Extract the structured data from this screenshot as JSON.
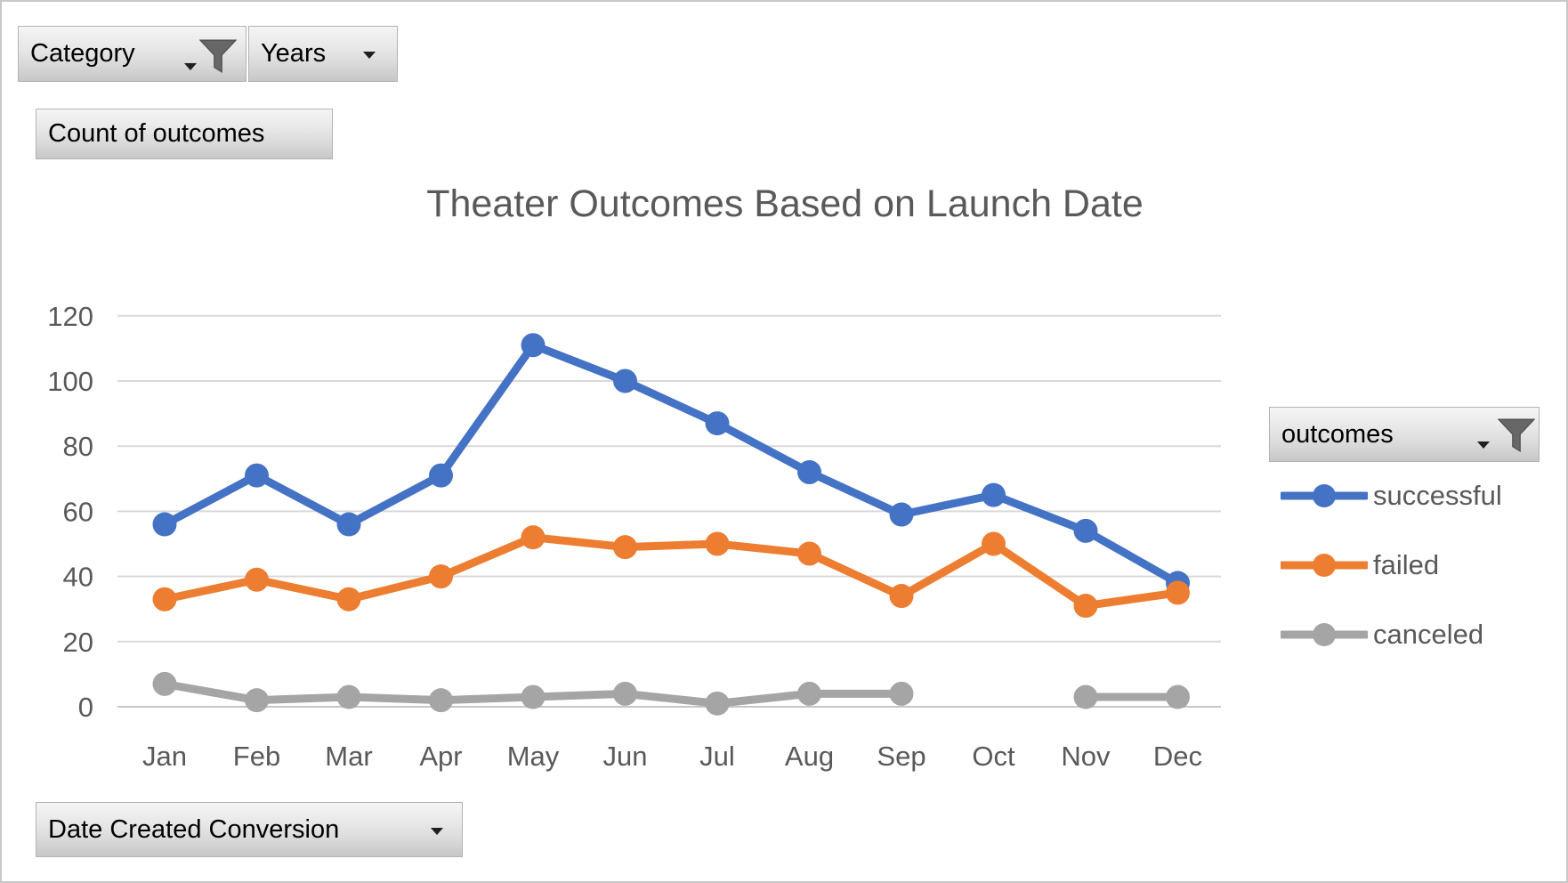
{
  "window": {
    "background": "#ffffff",
    "border_color": "#c9c9c9"
  },
  "field_buttons": {
    "category": {
      "label": "Category",
      "has_dropdown": true,
      "has_filter": true
    },
    "years": {
      "label": "Years",
      "has_dropdown": true,
      "has_filter": false
    },
    "values": {
      "label": "Count of outcomes",
      "has_dropdown": false,
      "has_filter": false
    },
    "legend": {
      "label": "outcomes",
      "has_dropdown": true,
      "has_filter": true
    },
    "axis": {
      "label": "Date Created Conversion",
      "has_dropdown": true,
      "has_filter": false
    }
  },
  "chart_data": {
    "type": "line",
    "title": "Theater Outcomes Based on Launch Date",
    "categories": [
      "Jan",
      "Feb",
      "Mar",
      "Apr",
      "May",
      "Jun",
      "Jul",
      "Aug",
      "Sep",
      "Oct",
      "Nov",
      "Dec"
    ],
    "series": [
      {
        "name": "successful",
        "color": "#4472C4",
        "values": [
          56,
          71,
          56,
          71,
          111,
          100,
          87,
          72,
          59,
          65,
          54,
          38
        ]
      },
      {
        "name": "failed",
        "color": "#ED7D31",
        "values": [
          33,
          39,
          33,
          40,
          52,
          49,
          50,
          47,
          34,
          50,
          31,
          35
        ]
      },
      {
        "name": "canceled",
        "color": "#A5A5A5",
        "values": [
          7,
          2,
          3,
          2,
          3,
          4,
          1,
          4,
          4,
          null,
          3,
          3
        ]
      }
    ],
    "xlabel": "",
    "ylabel": "",
    "ylim": [
      0,
      120
    ],
    "yticks": [
      0,
      20,
      40,
      60,
      80,
      100,
      120
    ],
    "grid": true,
    "legend_position": "right",
    "axis_text_color": "#595959",
    "gridline_color": "#D9D9D9",
    "zero_line_color": "#C6C6C6"
  }
}
